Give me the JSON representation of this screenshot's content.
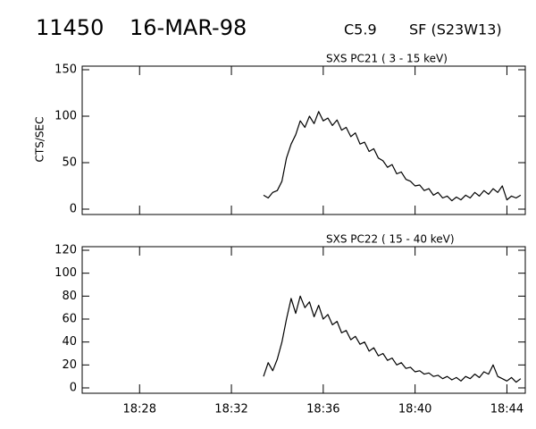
{
  "header": {
    "id": "11450",
    "date": "16-MAR-98",
    "class": "C5.9",
    "flare": "SF (S23W13)"
  },
  "chart_data": [
    {
      "type": "line",
      "title": "SXS PC21  (  3 - 15 keV)",
      "y_label": "CTS/SEC",
      "x": [
        1113.4,
        1113.6,
        1113.8,
        1114.0,
        1114.2,
        1114.4,
        1114.6,
        1114.8,
        1115.0,
        1115.2,
        1115.4,
        1115.6,
        1115.8,
        1116.0,
        1116.2,
        1116.4,
        1116.6,
        1116.8,
        1117.0,
        1117.2,
        1117.4,
        1117.6,
        1117.8,
        1118.0,
        1118.2,
        1118.4,
        1118.6,
        1118.8,
        1119.0,
        1119.2,
        1119.4,
        1119.6,
        1119.8,
        1120.0,
        1120.2,
        1120.4,
        1120.6,
        1120.8,
        1121.0,
        1121.2,
        1121.4,
        1121.6,
        1121.8,
        1122.0,
        1122.2,
        1122.4,
        1122.6,
        1122.8,
        1123.0,
        1123.2,
        1123.4,
        1123.6,
        1123.8,
        1124.0,
        1124.2,
        1124.4,
        1124.6
      ],
      "values": [
        15,
        12,
        18,
        20,
        30,
        55,
        70,
        80,
        95,
        88,
        100,
        92,
        105,
        95,
        98,
        90,
        96,
        85,
        88,
        78,
        82,
        70,
        72,
        62,
        65,
        55,
        52,
        45,
        48,
        38,
        40,
        32,
        30,
        25,
        26,
        20,
        22,
        15,
        18,
        12,
        14,
        9,
        13,
        10,
        15,
        12,
        18,
        14,
        20,
        16,
        22,
        18,
        25,
        10,
        14,
        12,
        15
      ],
      "xlim": [
        1105.5,
        1124.8
      ],
      "xticks": [
        {
          "value": 1108,
          "label": "18:28"
        },
        {
          "value": 1112,
          "label": "18:32"
        },
        {
          "value": 1116,
          "label": "18:36"
        },
        {
          "value": 1120,
          "label": "18:40"
        },
        {
          "value": 1124,
          "label": "18:44"
        }
      ],
      "ylim": [
        0,
        150
      ],
      "yticks": [
        0,
        50,
        100,
        150
      ],
      "color": "#000000"
    },
    {
      "type": "line",
      "title": "SXS PC22  ( 15 - 40 keV)",
      "x": [
        1113.4,
        1113.6,
        1113.8,
        1114.0,
        1114.2,
        1114.4,
        1114.6,
        1114.8,
        1115.0,
        1115.2,
        1115.4,
        1115.6,
        1115.8,
        1116.0,
        1116.2,
        1116.4,
        1116.6,
        1116.8,
        1117.0,
        1117.2,
        1117.4,
        1117.6,
        1117.8,
        1118.0,
        1118.2,
        1118.4,
        1118.6,
        1118.8,
        1119.0,
        1119.2,
        1119.4,
        1119.6,
        1119.8,
        1120.0,
        1120.2,
        1120.4,
        1120.6,
        1120.8,
        1121.0,
        1121.2,
        1121.4,
        1121.6,
        1121.8,
        1122.0,
        1122.2,
        1122.4,
        1122.6,
        1122.8,
        1123.0,
        1123.2,
        1123.4,
        1123.6,
        1123.8,
        1124.0,
        1124.2,
        1124.4,
        1124.6
      ],
      "values": [
        10,
        22,
        15,
        25,
        40,
        60,
        78,
        65,
        80,
        70,
        75,
        62,
        72,
        60,
        64,
        55,
        58,
        48,
        50,
        42,
        45,
        38,
        40,
        32,
        35,
        28,
        30,
        24,
        26,
        20,
        22,
        17,
        18,
        14,
        15,
        12,
        13,
        10,
        11,
        8,
        10,
        7,
        9,
        6,
        10,
        8,
        12,
        9,
        14,
        12,
        20,
        10,
        8,
        6,
        9,
        5,
        8
      ],
      "xlim": [
        1105.5,
        1124.8
      ],
      "xticks": [
        {
          "value": 1108,
          "label": "18:28"
        },
        {
          "value": 1112,
          "label": "18:32"
        },
        {
          "value": 1116,
          "label": "18:36"
        },
        {
          "value": 1120,
          "label": "18:40"
        },
        {
          "value": 1124,
          "label": "18:44"
        }
      ],
      "ylim": [
        0,
        120
      ],
      "yticks": [
        0,
        20,
        40,
        60,
        80,
        100,
        120
      ],
      "color": "#000000"
    }
  ]
}
